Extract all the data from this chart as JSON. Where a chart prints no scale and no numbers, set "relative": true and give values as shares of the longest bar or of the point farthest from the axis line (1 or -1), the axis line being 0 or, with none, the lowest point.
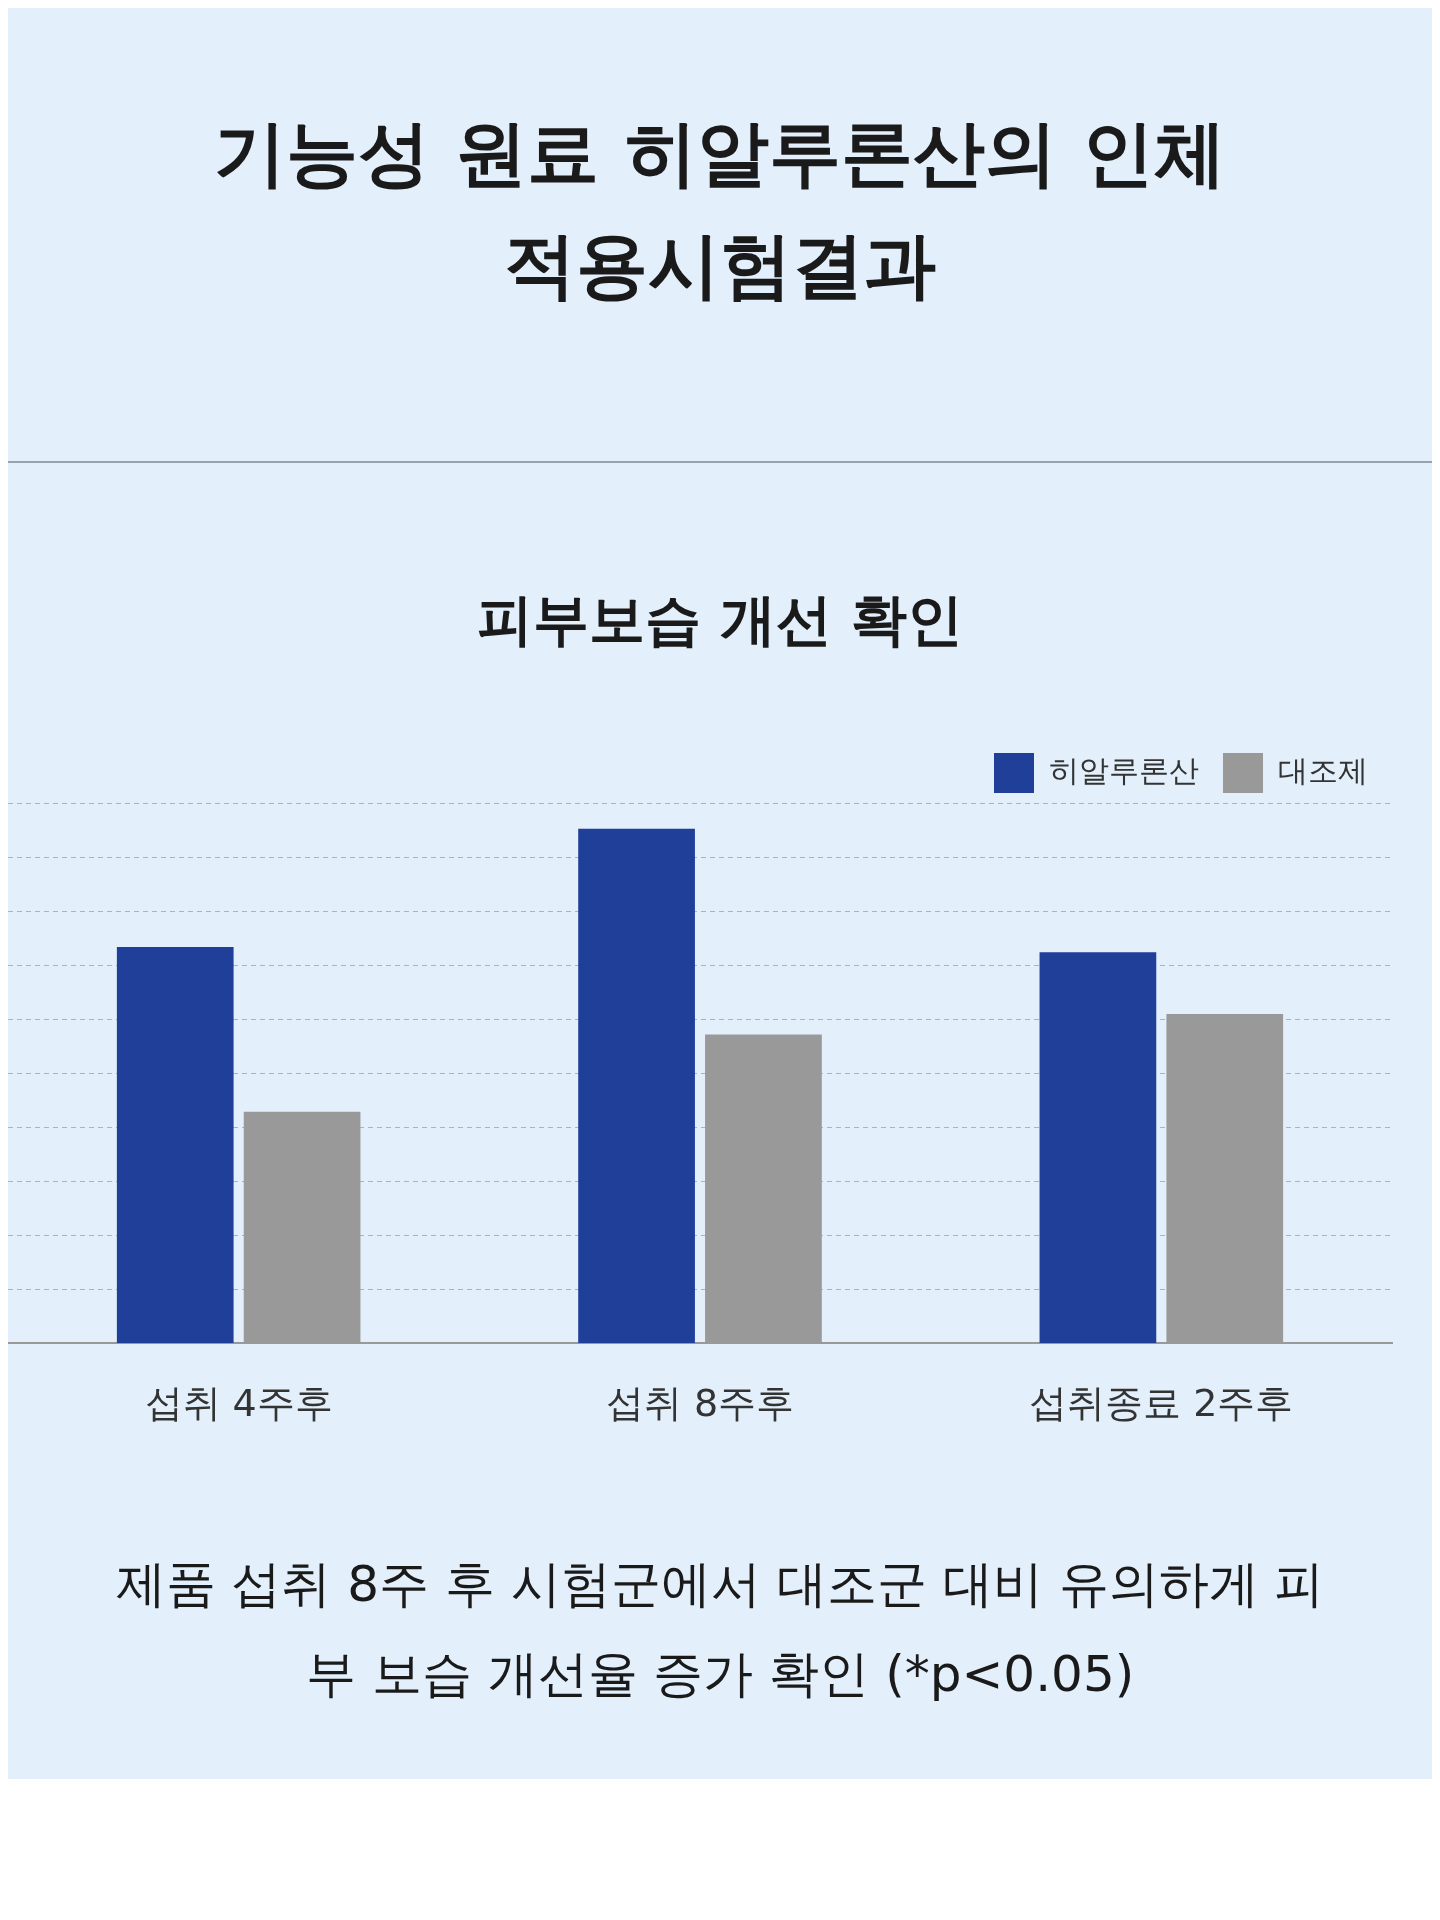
{
  "chart_data": {
    "type": "bar",
    "title": "기능성 원료 히알루론산의 인체적용시험결과",
    "subtitle": "피부보습 개선 확인",
    "categories": [
      "섭취 4주후",
      "섭취 8주후",
      "섭취종료 2주후"
    ],
    "series": [
      {
        "name": "히알루론산",
        "color": "#1f3f99",
        "values": [
          0.77,
          1,
          0.76
        ]
      },
      {
        "name": "대조제",
        "color": "#999999",
        "values": [
          0.45,
          0.6,
          0.64
        ]
      }
    ],
    "relative": true,
    "grid": "y",
    "legend": "top right",
    "annotations": [
      "제품 섭취 8주 후 시험군에서 대조군 대비 유의하게 피부 보습 개선율 증가 확인 (*p<0.05)"
    ]
  }
}
